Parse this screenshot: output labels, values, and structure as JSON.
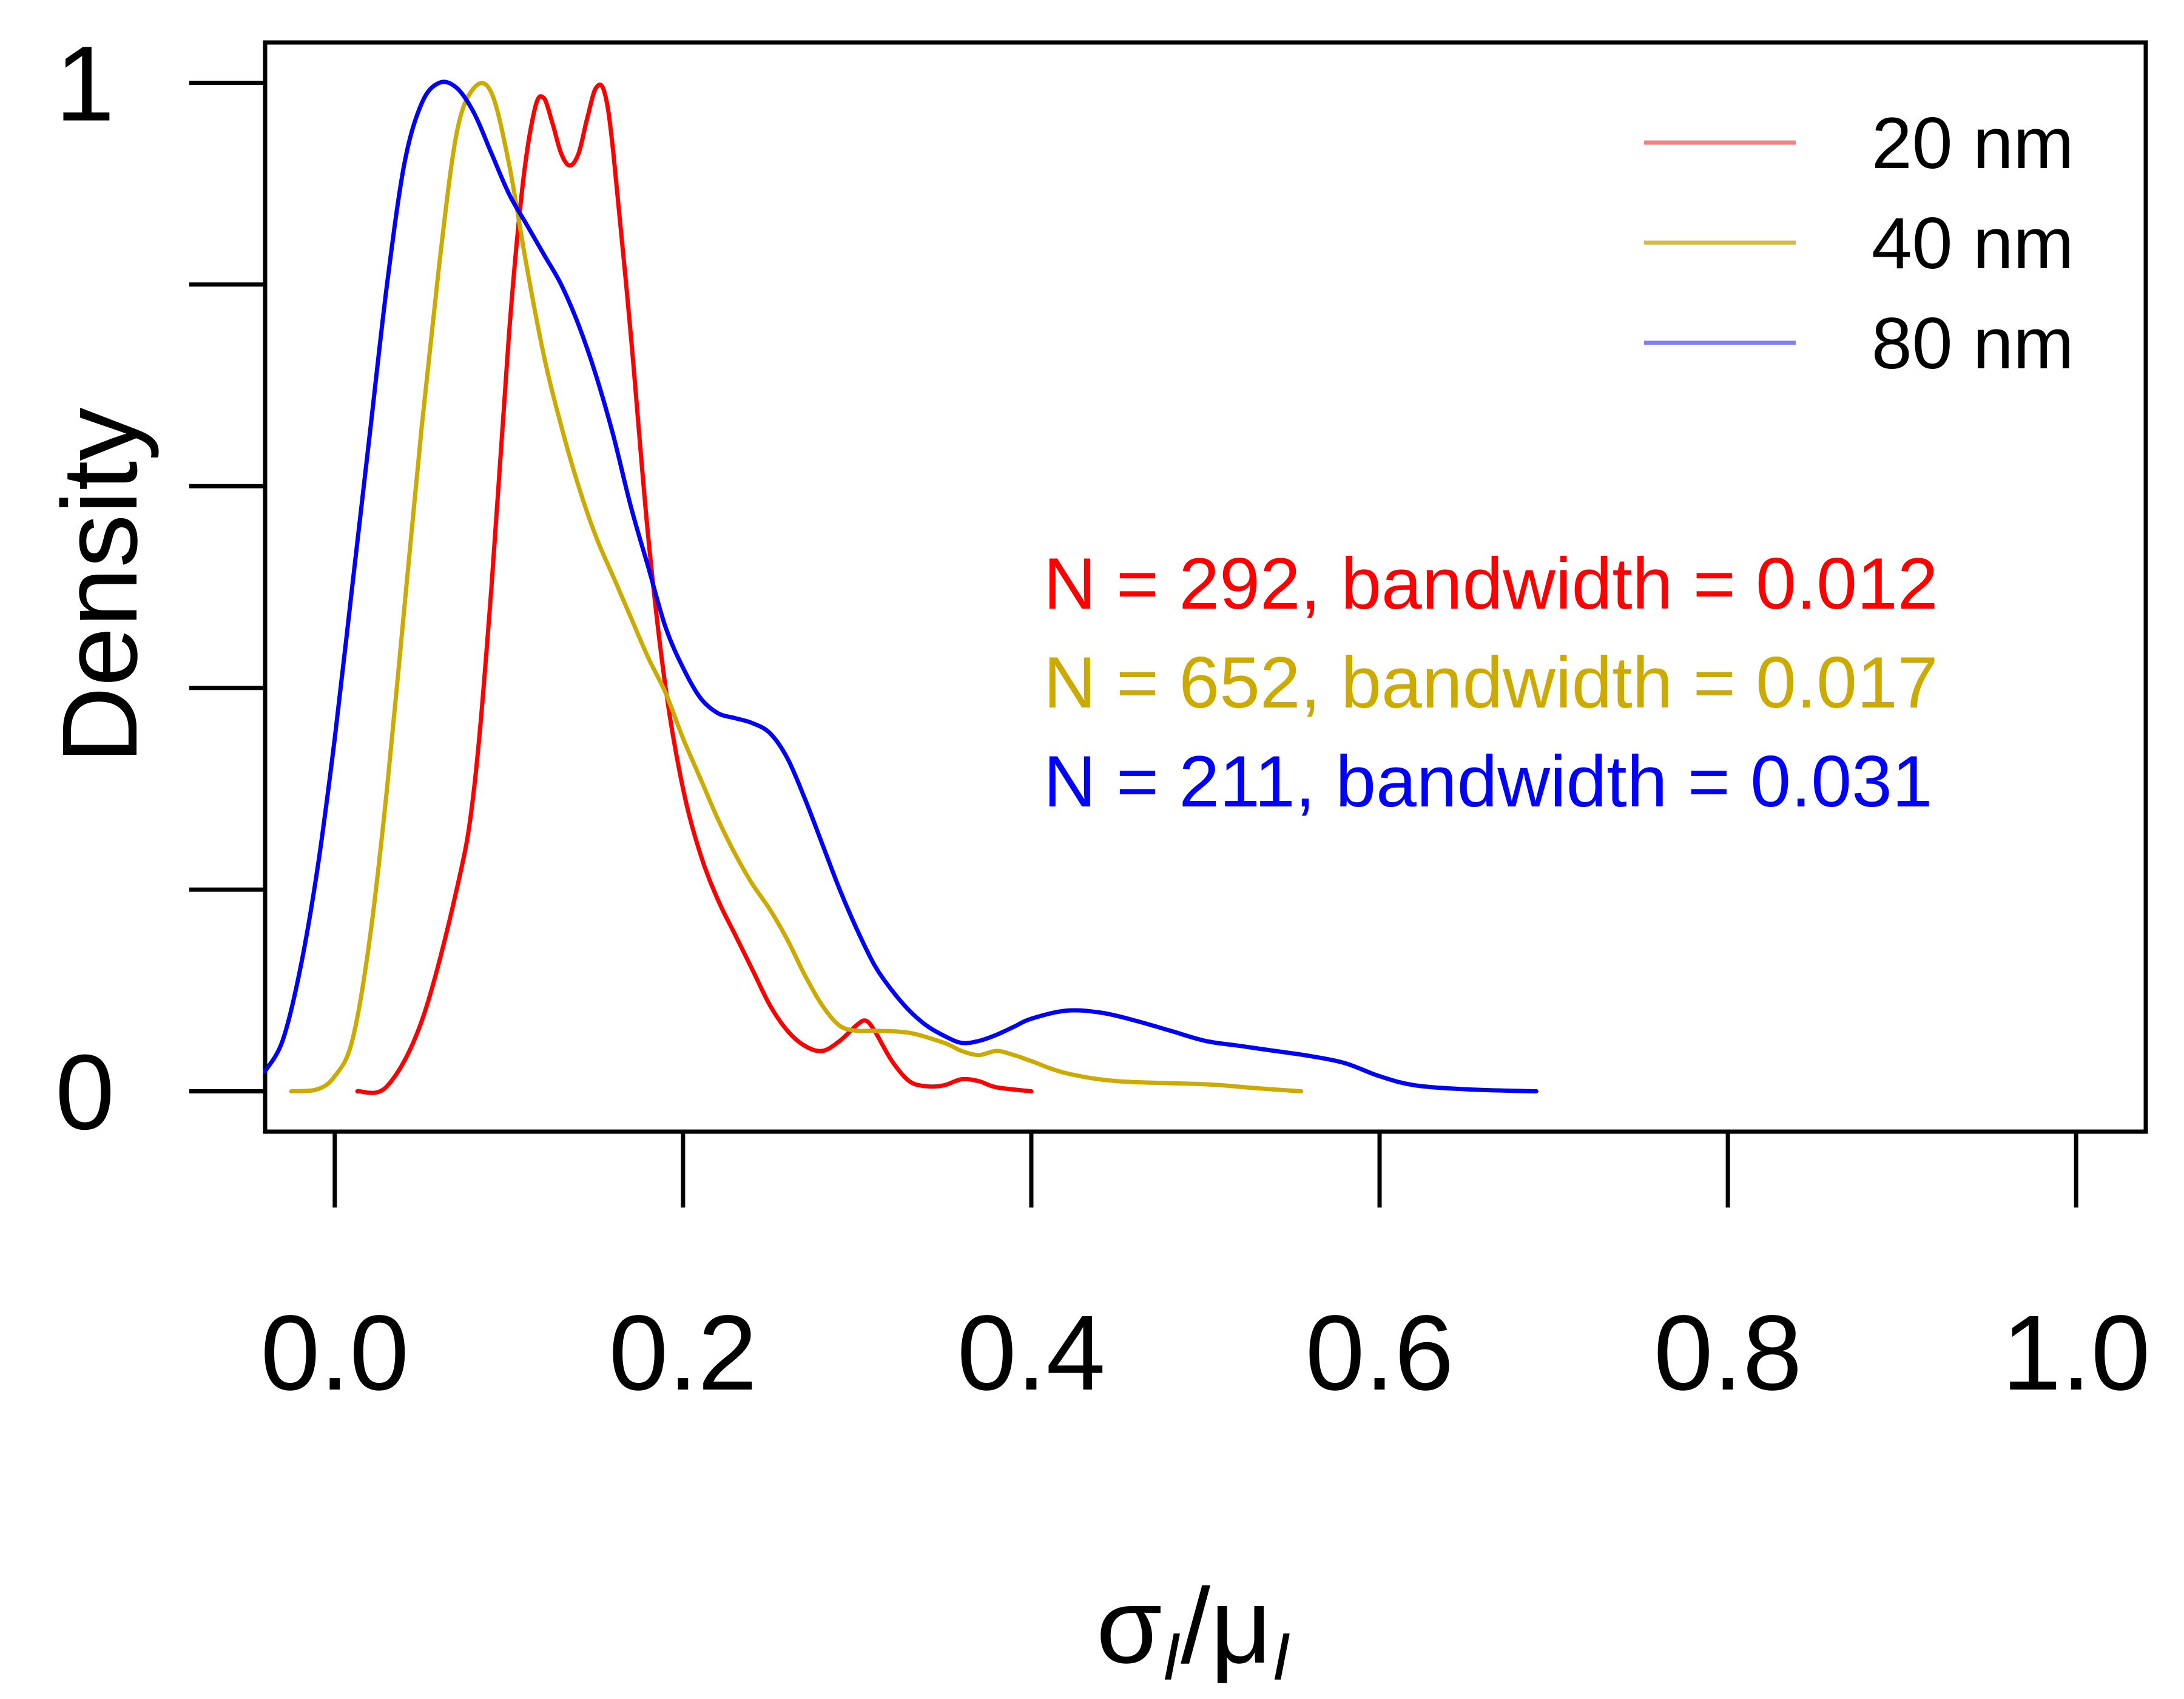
{
  "chart_data": {
    "type": "line",
    "title": "",
    "xlabel": "σ",
    "xlabel_parts": {
      "num": "σ",
      "num_sub": "I",
      "slash": "/",
      "den": "μ",
      "den_sub": "I"
    },
    "ylabel": "Density",
    "xlim": [
      -0.04,
      1.04
    ],
    "ylim": [
      -0.04,
      1.04
    ],
    "x_ticks": [
      {
        "value": 0.0,
        "label": "0.0"
      },
      {
        "value": 0.2,
        "label": "0.2"
      },
      {
        "value": 0.4,
        "label": "0.4"
      },
      {
        "value": 0.6,
        "label": "0.6"
      },
      {
        "value": 0.8,
        "label": "0.8"
      },
      {
        "value": 1.0,
        "label": "1.0"
      }
    ],
    "y_ticks": [
      0,
      0.2,
      0.4,
      0.6,
      0.8,
      1
    ],
    "y_tick_labels": [
      {
        "value": 0,
        "label": "0"
      },
      {
        "value": 1,
        "label": "1"
      }
    ],
    "grid": false,
    "legend_position": "top-right",
    "series": [
      {
        "name": "20 nm",
        "color": "#ff0000",
        "legend_color": "#ff7f7f",
        "points": [
          [
            0.013,
            0.0
          ],
          [
            0.03,
            0.005
          ],
          [
            0.05,
            0.07
          ],
          [
            0.07,
            0.2
          ],
          [
            0.08,
            0.3
          ],
          [
            0.09,
            0.5
          ],
          [
            0.1,
            0.75
          ],
          [
            0.108,
            0.9
          ],
          [
            0.115,
            0.975
          ],
          [
            0.12,
            0.985
          ],
          [
            0.125,
            0.96
          ],
          [
            0.13,
            0.93
          ],
          [
            0.135,
            0.918
          ],
          [
            0.14,
            0.93
          ],
          [
            0.145,
            0.965
          ],
          [
            0.15,
            0.995
          ],
          [
            0.155,
            0.99
          ],
          [
            0.16,
            0.93
          ],
          [
            0.17,
            0.75
          ],
          [
            0.18,
            0.55
          ],
          [
            0.19,
            0.4
          ],
          [
            0.2,
            0.3
          ],
          [
            0.21,
            0.235
          ],
          [
            0.22,
            0.19
          ],
          [
            0.23,
            0.155
          ],
          [
            0.24,
            0.12
          ],
          [
            0.25,
            0.085
          ],
          [
            0.26,
            0.06
          ],
          [
            0.27,
            0.045
          ],
          [
            0.28,
            0.04
          ],
          [
            0.29,
            0.05
          ],
          [
            0.3,
            0.066
          ],
          [
            0.305,
            0.07
          ],
          [
            0.31,
            0.06
          ],
          [
            0.32,
            0.03
          ],
          [
            0.33,
            0.01
          ],
          [
            0.34,
            0.005
          ],
          [
            0.35,
            0.006
          ],
          [
            0.36,
            0.012
          ],
          [
            0.37,
            0.01
          ],
          [
            0.38,
            0.004
          ],
          [
            0.4,
            0.0
          ]
        ]
      },
      {
        "name": "40 nm",
        "color": "#ccaa00",
        "legend_color": "#d4bb4f",
        "points": [
          [
            -0.025,
            0.0
          ],
          [
            -0.01,
            0.002
          ],
          [
            0.0,
            0.015
          ],
          [
            0.01,
            0.05
          ],
          [
            0.02,
            0.15
          ],
          [
            0.03,
            0.3
          ],
          [
            0.04,
            0.48
          ],
          [
            0.05,
            0.66
          ],
          [
            0.06,
            0.82
          ],
          [
            0.07,
            0.95
          ],
          [
            0.08,
            0.995
          ],
          [
            0.09,
            0.99
          ],
          [
            0.1,
            0.92
          ],
          [
            0.11,
            0.82
          ],
          [
            0.12,
            0.73
          ],
          [
            0.13,
            0.66
          ],
          [
            0.14,
            0.6
          ],
          [
            0.15,
            0.55
          ],
          [
            0.16,
            0.51
          ],
          [
            0.17,
            0.47
          ],
          [
            0.18,
            0.43
          ],
          [
            0.19,
            0.395
          ],
          [
            0.2,
            0.35
          ],
          [
            0.21,
            0.31
          ],
          [
            0.22,
            0.27
          ],
          [
            0.23,
            0.235
          ],
          [
            0.24,
            0.205
          ],
          [
            0.25,
            0.18
          ],
          [
            0.26,
            0.15
          ],
          [
            0.27,
            0.115
          ],
          [
            0.28,
            0.085
          ],
          [
            0.29,
            0.065
          ],
          [
            0.3,
            0.06
          ],
          [
            0.31,
            0.06
          ],
          [
            0.33,
            0.058
          ],
          [
            0.35,
            0.048
          ],
          [
            0.36,
            0.04
          ],
          [
            0.37,
            0.036
          ],
          [
            0.38,
            0.04
          ],
          [
            0.39,
            0.036
          ],
          [
            0.4,
            0.03
          ],
          [
            0.42,
            0.018
          ],
          [
            0.45,
            0.01
          ],
          [
            0.5,
            0.007
          ],
          [
            0.53,
            0.003
          ],
          [
            0.555,
            0.0
          ]
        ]
      },
      {
        "name": "80 nm",
        "color": "#0000ff",
        "legend_color": "#7f7fff",
        "points": [
          [
            -0.04,
            0.02
          ],
          [
            -0.03,
            0.05
          ],
          [
            -0.02,
            0.12
          ],
          [
            -0.01,
            0.22
          ],
          [
            0.0,
            0.35
          ],
          [
            0.01,
            0.5
          ],
          [
            0.02,
            0.65
          ],
          [
            0.03,
            0.8
          ],
          [
            0.04,
            0.92
          ],
          [
            0.05,
            0.98
          ],
          [
            0.06,
            1.0
          ],
          [
            0.07,
            0.995
          ],
          [
            0.08,
            0.97
          ],
          [
            0.09,
            0.93
          ],
          [
            0.1,
            0.89
          ],
          [
            0.11,
            0.86
          ],
          [
            0.12,
            0.83
          ],
          [
            0.13,
            0.8
          ],
          [
            0.14,
            0.76
          ],
          [
            0.15,
            0.71
          ],
          [
            0.16,
            0.65
          ],
          [
            0.17,
            0.58
          ],
          [
            0.18,
            0.52
          ],
          [
            0.19,
            0.46
          ],
          [
            0.2,
            0.42
          ],
          [
            0.21,
            0.39
          ],
          [
            0.22,
            0.375
          ],
          [
            0.23,
            0.37
          ],
          [
            0.24,
            0.365
          ],
          [
            0.25,
            0.355
          ],
          [
            0.26,
            0.33
          ],
          [
            0.27,
            0.29
          ],
          [
            0.28,
            0.245
          ],
          [
            0.29,
            0.2
          ],
          [
            0.3,
            0.16
          ],
          [
            0.31,
            0.125
          ],
          [
            0.32,
            0.1
          ],
          [
            0.33,
            0.08
          ],
          [
            0.34,
            0.065
          ],
          [
            0.35,
            0.055
          ],
          [
            0.36,
            0.048
          ],
          [
            0.37,
            0.05
          ],
          [
            0.38,
            0.056
          ],
          [
            0.39,
            0.064
          ],
          [
            0.4,
            0.072
          ],
          [
            0.42,
            0.08
          ],
          [
            0.44,
            0.078
          ],
          [
            0.46,
            0.07
          ],
          [
            0.48,
            0.06
          ],
          [
            0.5,
            0.05
          ],
          [
            0.52,
            0.045
          ],
          [
            0.54,
            0.04
          ],
          [
            0.56,
            0.035
          ],
          [
            0.58,
            0.028
          ],
          [
            0.6,
            0.015
          ],
          [
            0.62,
            0.006
          ],
          [
            0.65,
            0.002
          ],
          [
            0.69,
            0.0
          ]
        ]
      }
    ],
    "annotations": [
      {
        "text": "N = 292, bandwidth = 0.012",
        "color": "#ff0000"
      },
      {
        "text": "N = 652, bandwidth = 0.017",
        "color": "#ccaa00"
      },
      {
        "text": "N = 211, bandwidth = 0.031",
        "color": "#0000ff"
      }
    ]
  }
}
